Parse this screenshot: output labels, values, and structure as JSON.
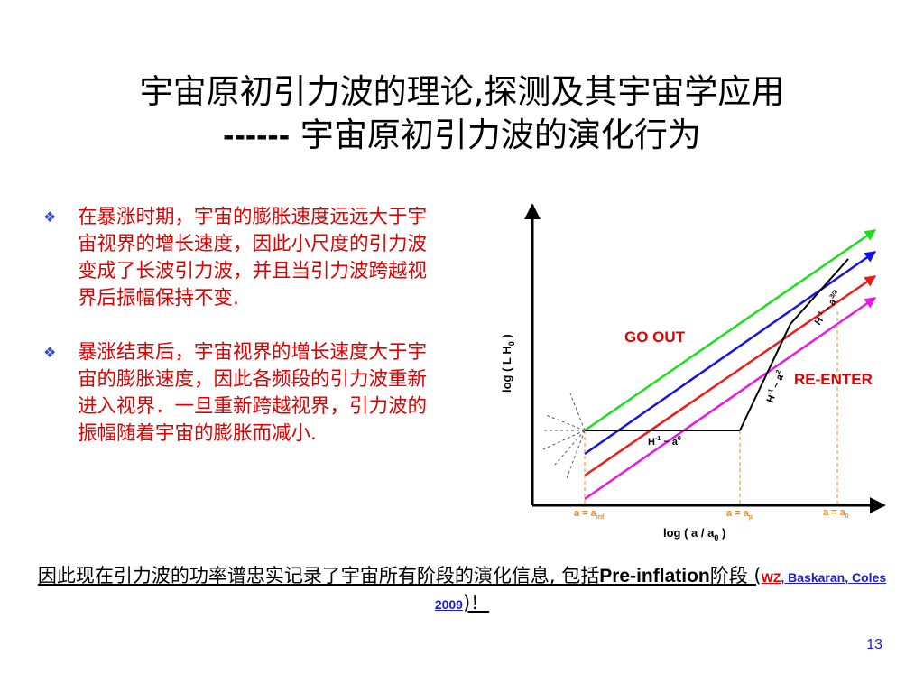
{
  "title": {
    "line1": "宇宙原初引力波的理论,探测及其宇宙学应用",
    "line2_dashes": "------",
    "line2_text": " 宇宙原初引力波的演化行为"
  },
  "bullets": [
    {
      "text": "在暴涨时期，宇宙的膨胀速度远远大于宇宙视界的增长速度，因此小尺度的引力波变成了长波引力波，并且当引力波跨越视界后振幅保持不变."
    },
    {
      "text": "暴涨结束后，宇宙视界的增长速度大于宇宙的膨胀速度，因此各频段的引力波重新进入视界．一旦重新跨越视界，引力波的振幅随着宇宙的膨胀而减小."
    }
  ],
  "bullet_icon": "diamond-bullet-icon",
  "diagram": {
    "ylabel": "log ( L H",
    "ylabel_sub": "0",
    "ylabel_end": " )",
    "xlabel": "log ( a / a",
    "xlabel_sub": "0",
    "xlabel_end": " )",
    "go_out": "GO OUT",
    "re_enter": "RE-ENTER",
    "h_flat": "H",
    "h_flat_sup": "-1",
    "h_flat_tilde": " ~ a",
    "h_flat_exp": "0",
    "h_mid": "H",
    "h_mid_sup": "-1",
    "h_mid_tilde": " ~ a",
    "h_mid_exp": "2",
    "h_top": "H",
    "h_top_sup": "-1",
    "h_top_tilde": " ~ a",
    "h_top_exp": "3/2",
    "tick_inf": "a = a",
    "tick_inf_sub": "inf",
    "tick_p": "a = a",
    "tick_p_sub": "p",
    "tick_0": "a = a",
    "tick_0_sub": "0",
    "line_colors": [
      "#19e019",
      "#1414e6",
      "#ef1b1b",
      "#e619e6"
    ],
    "label_red": "#e00000",
    "tick_orange": "#f08a1e"
  },
  "summary": {
    "text": "因此现在引力波的功率谱忠实记录了宇宙所有阶段的演化信息, 包括",
    "bold1": "Pre-inflation",
    "text2": "阶段 (",
    "wz": "WZ",
    "ref": ", Baskaran, Coles 2009",
    "close": ")！"
  },
  "page_number": "13"
}
